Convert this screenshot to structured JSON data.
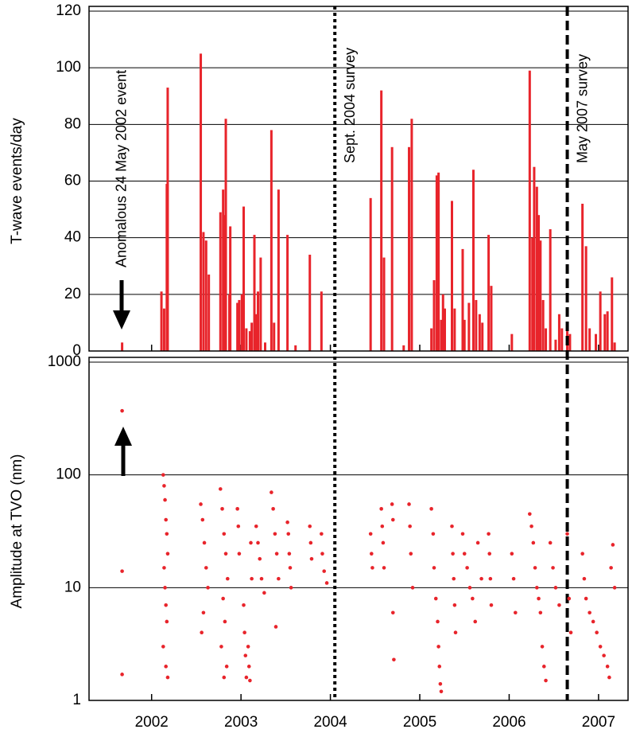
{
  "chart_data": [
    {
      "type": "bar",
      "ylabel": "T-wave events/day",
      "color": "#e8242b",
      "grid": true,
      "xlim": [
        2001.8,
        2007.83
      ],
      "ylim": [
        0,
        120
      ],
      "yticks": [
        0,
        20,
        40,
        60,
        80,
        100,
        120
      ],
      "annotation": {
        "text": "Anomalous 24 May 2002 event",
        "x": 2002.17
      },
      "events": [
        {
          "x": 2004.55,
          "label": "Sept. 2004 survey",
          "style": "dotted"
        },
        {
          "x": 2007.15,
          "label": "May 2007 survey",
          "style": "dashed"
        }
      ],
      "x": [
        2002.17,
        2002.61,
        2002.64,
        2002.67,
        2002.68,
        2003.05,
        2003.08,
        2003.11,
        2003.14,
        2003.27,
        2003.3,
        2003.31,
        2003.33,
        2003.37,
        2003.38,
        2003.46,
        2003.48,
        2003.51,
        2003.53,
        2003.56,
        2003.6,
        2003.62,
        2003.65,
        2003.67,
        2003.69,
        2003.72,
        2003.77,
        2003.84,
        2003.87,
        2003.92,
        2004.02,
        2004.11,
        2004.27,
        2004.4,
        2004.95,
        2005.07,
        2005.1,
        2005.19,
        2005.32,
        2005.38,
        2005.41,
        2005.63,
        2005.66,
        2005.69,
        2005.71,
        2005.74,
        2005.76,
        2005.78,
        2005.86,
        2005.89,
        2005.98,
        2006.0,
        2006.05,
        2006.1,
        2006.13,
        2006.17,
        2006.2,
        2006.27,
        2006.3,
        2006.53,
        2006.73,
        2006.76,
        2006.78,
        2006.81,
        2006.83,
        2006.85,
        2006.88,
        2006.91,
        2006.96,
        2007.02,
        2007.06,
        2007.09,
        2007.15,
        2007.18,
        2007.32,
        2007.36,
        2007.4,
        2007.47,
        2007.52,
        2007.57,
        2007.6,
        2007.65,
        2007.68
      ],
      "values": [
        3,
        21,
        15,
        59,
        93,
        105,
        42,
        39,
        27,
        49,
        57,
        48,
        82,
        20,
        44,
        17,
        18,
        20,
        51,
        8,
        7,
        10,
        41,
        13,
        21,
        33,
        3,
        78,
        10,
        57,
        41,
        2,
        34,
        21,
        54,
        92,
        33,
        72,
        2,
        72,
        82,
        8,
        25,
        62,
        63,
        11,
        20,
        15,
        53,
        15,
        36,
        11,
        17,
        64,
        18,
        13,
        10,
        41,
        23,
        6,
        99,
        40,
        65,
        58,
        48,
        39,
        18,
        8,
        43,
        4,
        13,
        8,
        7,
        6,
        52,
        37,
        8,
        6,
        21,
        13,
        14,
        26,
        3
      ]
    },
    {
      "type": "scatter",
      "ylabel": "Amplitude at TVO (nm)",
      "color": "#e8242b",
      "grid": true,
      "log_y": true,
      "xlim": [
        2001.8,
        2007.83
      ],
      "ylim": [
        1,
        1000
      ],
      "yticks": [
        1,
        10,
        100,
        1000
      ],
      "xticks": [
        {
          "value": 2002.5,
          "label": "2002"
        },
        {
          "value": 2003.5,
          "label": "2003"
        },
        {
          "value": 2004.5,
          "label": "2004"
        },
        {
          "value": 2005.5,
          "label": "2005"
        },
        {
          "value": 2006.5,
          "label": "2006"
        },
        {
          "value": 2007.5,
          "label": "2007"
        }
      ],
      "x": [
        2002.17,
        2002.17,
        2002.17,
        2002.63,
        2002.64,
        2002.65,
        2002.66,
        2002.67,
        2002.68,
        2002.64,
        2002.65,
        2002.66,
        2002.67,
        2002.63,
        2002.66,
        2002.68,
        2003.05,
        2003.07,
        2003.09,
        2003.11,
        2003.13,
        2003.08,
        2003.06,
        2003.27,
        2003.29,
        2003.31,
        2003.33,
        2003.35,
        2003.3,
        2003.32,
        2003.28,
        2003.34,
        2003.31,
        2003.46,
        2003.47,
        2003.48,
        2003.53,
        2003.54,
        2003.55,
        2003.56,
        2003.58,
        2003.59,
        2003.6,
        2003.61,
        2003.62,
        2003.67,
        2003.69,
        2003.71,
        2003.73,
        2003.76,
        2003.84,
        2003.86,
        2003.88,
        2003.9,
        2003.92,
        2003.89,
        2004.02,
        2004.03,
        2004.04,
        2004.05,
        2004.06,
        2004.27,
        2004.28,
        2004.29,
        2004.4,
        2004.41,
        2004.43,
        2004.46,
        2004.95,
        2004.96,
        2004.97,
        2005.07,
        2005.08,
        2005.09,
        2005.1,
        2005.19,
        2005.2,
        2005.2,
        2005.21,
        2005.38,
        2005.39,
        2005.4,
        2005.42,
        2005.63,
        2005.65,
        2005.66,
        2005.68,
        2005.7,
        2005.71,
        2005.72,
        2005.73,
        2005.74,
        2005.86,
        2005.87,
        2005.88,
        2005.89,
        2005.9,
        2005.98,
        2006.0,
        2006.03,
        2006.06,
        2006.09,
        2006.12,
        2006.15,
        2006.19,
        2006.27,
        2006.28,
        2006.29,
        2006.3,
        2006.53,
        2006.55,
        2006.57,
        2006.73,
        2006.75,
        2006.77,
        2006.79,
        2006.81,
        2006.83,
        2006.85,
        2006.87,
        2006.89,
        2006.91,
        2006.96,
        2006.99,
        2007.02,
        2007.06,
        2007.15,
        2007.17,
        2007.19,
        2007.32,
        2007.34,
        2007.36,
        2007.4,
        2007.44,
        2007.48,
        2007.52,
        2007.56,
        2007.6,
        2007.62,
        2007.64,
        2007.66,
        2007.68
      ],
      "values": [
        370,
        14,
        1.7,
        100,
        80,
        60,
        40,
        30,
        20,
        15,
        10,
        7,
        5,
        3,
        2,
        1.6,
        55,
        40,
        25,
        15,
        10,
        6,
        4,
        75,
        50,
        30,
        20,
        12,
        8,
        5,
        3,
        2,
        1.6,
        50,
        35,
        20,
        7,
        4,
        2.5,
        1.6,
        3,
        2,
        1.5,
        25,
        12,
        35,
        25,
        18,
        12,
        9,
        70,
        50,
        30,
        20,
        12,
        4.5,
        38,
        30,
        20,
        15,
        10,
        35,
        25,
        18,
        30,
        20,
        14,
        11,
        30,
        20,
        15,
        50,
        35,
        25,
        15,
        55,
        40,
        6,
        2.3,
        55,
        35,
        20,
        10,
        50,
        30,
        15,
        8,
        5,
        3,
        2,
        1.4,
        1.2,
        35,
        20,
        12,
        7,
        4,
        30,
        20,
        15,
        10,
        8,
        5,
        25,
        12,
        30,
        20,
        12,
        7,
        20,
        12,
        6,
        45,
        35,
        25,
        15,
        10,
        8,
        6,
        3,
        2,
        1.5,
        25,
        15,
        10,
        7,
        30,
        8,
        4,
        20,
        12,
        8,
        6,
        5,
        4,
        3,
        2.5,
        2,
        1.6,
        15,
        24,
        10
      ]
    }
  ]
}
